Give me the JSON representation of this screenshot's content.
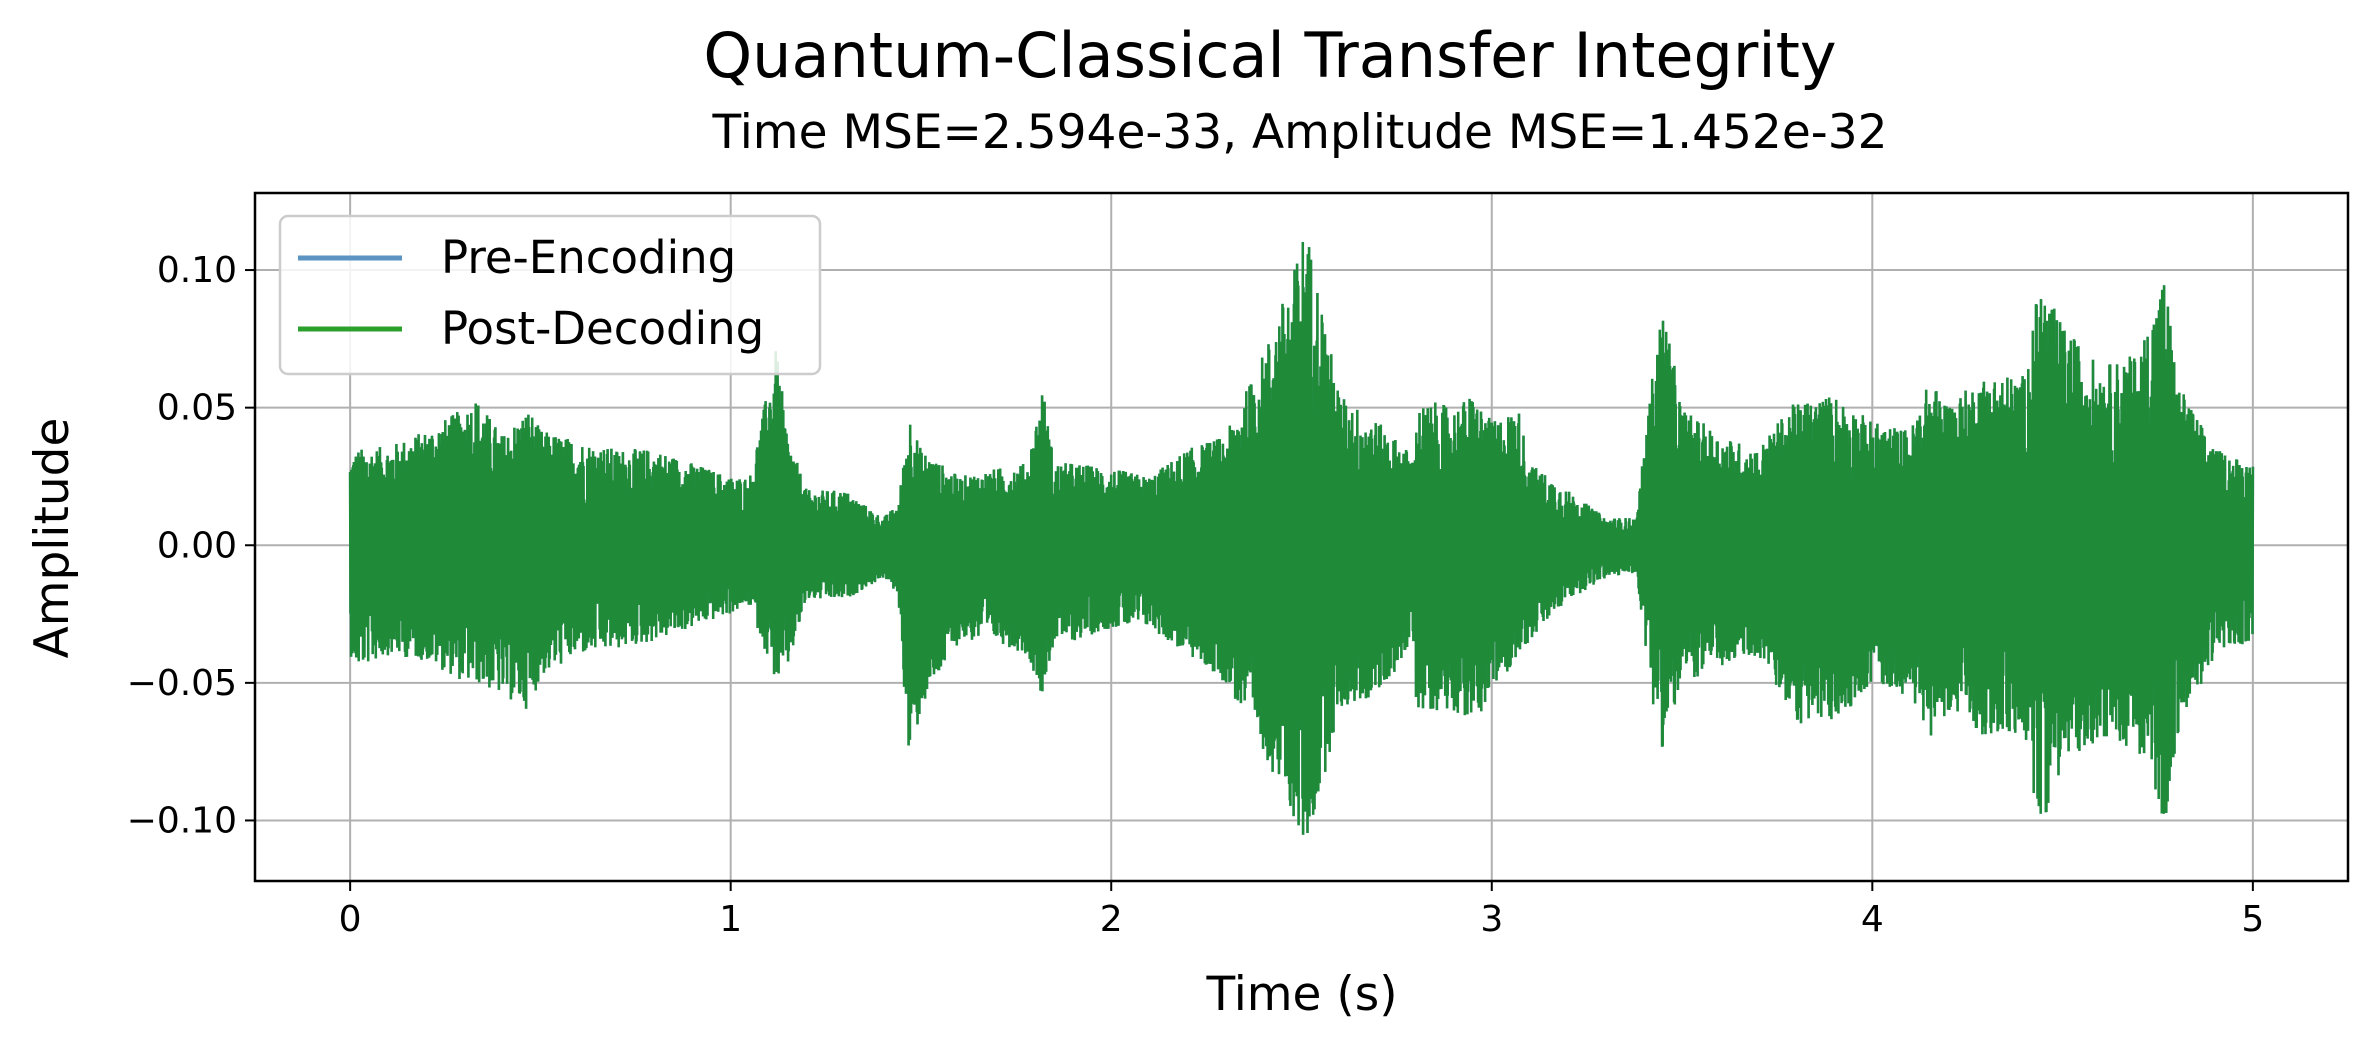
{
  "chart_data": {
    "type": "line",
    "title": "Quantum-Classical Transfer Integrity",
    "subtitle": "Time MSE=2.594e-33, Amplitude MSE=1.452e-32",
    "xlabel": "Time (s)",
    "ylabel": "Amplitude",
    "xlim": [
      -0.25,
      5.25
    ],
    "ylim": [
      -0.122,
      0.128
    ],
    "xticks": [
      0,
      1,
      2,
      3,
      4,
      5
    ],
    "xtick_labels": [
      "0",
      "1",
      "2",
      "3",
      "4",
      "5"
    ],
    "yticks": [
      -0.1,
      -0.05,
      0.0,
      0.05,
      0.1
    ],
    "ytick_labels": [
      "−0.10",
      "−0.05",
      "0.00",
      "0.05",
      "0.10"
    ],
    "grid": true,
    "legend_position": "top-left",
    "series": [
      {
        "name": "Pre-Encoding",
        "color": "#5b93c2"
      },
      {
        "name": "Post-Decoding",
        "color": "#2ca02c"
      }
    ],
    "envelope": {
      "x": [
        0,
        0.02,
        0.1,
        0.2,
        0.3,
        0.33,
        0.4,
        0.47,
        0.5,
        0.6,
        0.7,
        0.8,
        0.9,
        1.0,
        1.05,
        1.12,
        1.15,
        1.2,
        1.3,
        1.4,
        1.44,
        1.47,
        1.5,
        1.6,
        1.7,
        1.78,
        1.82,
        1.85,
        1.9,
        2.0,
        2.1,
        2.2,
        2.3,
        2.4,
        2.48,
        2.51,
        2.55,
        2.6,
        2.7,
        2.8,
        2.8,
        2.85,
        2.9,
        2.95,
        3.0,
        3.07,
        3.1,
        3.2,
        3.3,
        3.38,
        3.42,
        3.45,
        3.5,
        3.6,
        3.7,
        3.78,
        3.8,
        3.9,
        4.0,
        4.1,
        4.15,
        4.2,
        4.3,
        4.4,
        4.44,
        4.5,
        4.6,
        4.7,
        4.77,
        4.8,
        4.9,
        5.0
      ],
      "upper": [
        0.032,
        0.035,
        0.036,
        0.042,
        0.05,
        0.054,
        0.04,
        0.05,
        0.042,
        0.038,
        0.035,
        0.035,
        0.03,
        0.025,
        0.025,
        0.072,
        0.04,
        0.02,
        0.02,
        0.01,
        0.015,
        0.048,
        0.035,
        0.025,
        0.028,
        0.03,
        0.058,
        0.03,
        0.03,
        0.028,
        0.025,
        0.035,
        0.04,
        0.07,
        0.1,
        0.118,
        0.09,
        0.055,
        0.045,
        0.032,
        0.05,
        0.052,
        0.05,
        0.055,
        0.045,
        0.05,
        0.03,
        0.02,
        0.01,
        0.01,
        0.06,
        0.088,
        0.05,
        0.04,
        0.035,
        0.05,
        0.052,
        0.055,
        0.045,
        0.042,
        0.06,
        0.052,
        0.062,
        0.062,
        0.097,
        0.08,
        0.065,
        0.07,
        0.1,
        0.06,
        0.035,
        0.03
      ],
      "lower": [
        -0.04,
        -0.045,
        -0.04,
        -0.042,
        -0.05,
        -0.05,
        -0.055,
        -0.06,
        -0.048,
        -0.04,
        -0.038,
        -0.035,
        -0.03,
        -0.025,
        -0.022,
        -0.05,
        -0.045,
        -0.02,
        -0.02,
        -0.012,
        -0.018,
        -0.082,
        -0.06,
        -0.035,
        -0.035,
        -0.04,
        -0.055,
        -0.035,
        -0.035,
        -0.03,
        -0.03,
        -0.04,
        -0.05,
        -0.075,
        -0.1,
        -0.112,
        -0.09,
        -0.06,
        -0.055,
        -0.035,
        -0.06,
        -0.06,
        -0.06,
        -0.065,
        -0.055,
        -0.04,
        -0.035,
        -0.02,
        -0.012,
        -0.01,
        -0.055,
        -0.075,
        -0.05,
        -0.045,
        -0.04,
        -0.06,
        -0.065,
        -0.065,
        -0.05,
        -0.055,
        -0.07,
        -0.06,
        -0.07,
        -0.07,
        -0.104,
        -0.08,
        -0.07,
        -0.075,
        -0.102,
        -0.07,
        -0.04,
        -0.035
      ]
    }
  }
}
